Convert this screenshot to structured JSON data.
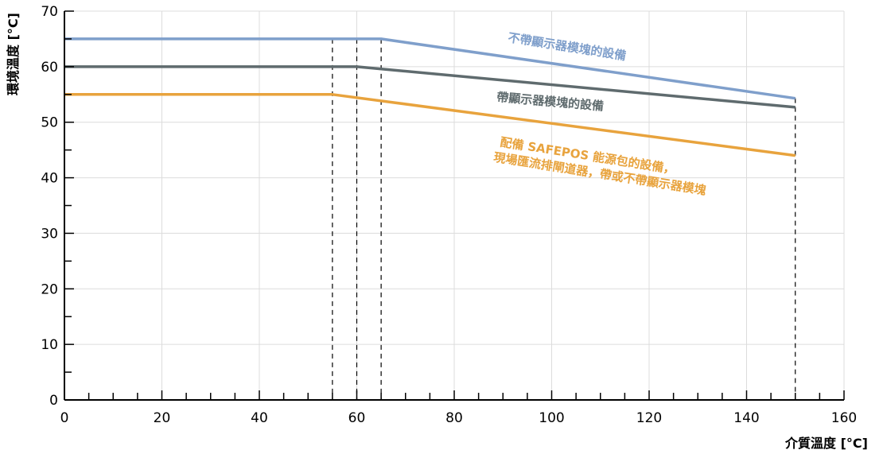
{
  "chart_data": {
    "type": "line",
    "xlabel": "介質溫度 [°C]",
    "ylabel": "環境溫度 [°C]",
    "xlim": [
      0,
      160
    ],
    "ylim": [
      0,
      70
    ],
    "x_ticks": [
      0,
      20,
      40,
      60,
      80,
      100,
      120,
      140,
      160
    ],
    "y_ticks": [
      0,
      10,
      20,
      30,
      40,
      50,
      60,
      70
    ],
    "grid": true,
    "series": [
      {
        "name": "不帶顯示器模塊的設備",
        "color": "#7f9fcb",
        "points": [
          [
            0,
            65
          ],
          [
            65,
            65
          ],
          [
            150,
            54.3
          ]
        ]
      },
      {
        "name": "帶顯示器模塊的設備",
        "color": "#5f6b6e",
        "points": [
          [
            0,
            60
          ],
          [
            60,
            60
          ],
          [
            150,
            52.7
          ]
        ]
      },
      {
        "name": "配備 SAFEPOS 能源包的設備，現場匯流排閘道器，帶或不帶顯示器模塊",
        "lines": [
          "配備 SAFEPOS 能源包的設備，",
          "現場匯流排閘道器，帶或不帶顯示器模塊"
        ],
        "color": "#e8a33d",
        "points": [
          [
            0,
            55
          ],
          [
            55,
            55
          ],
          [
            150,
            44
          ]
        ]
      }
    ],
    "reference_lines_x": [
      55,
      60,
      65,
      150
    ]
  }
}
